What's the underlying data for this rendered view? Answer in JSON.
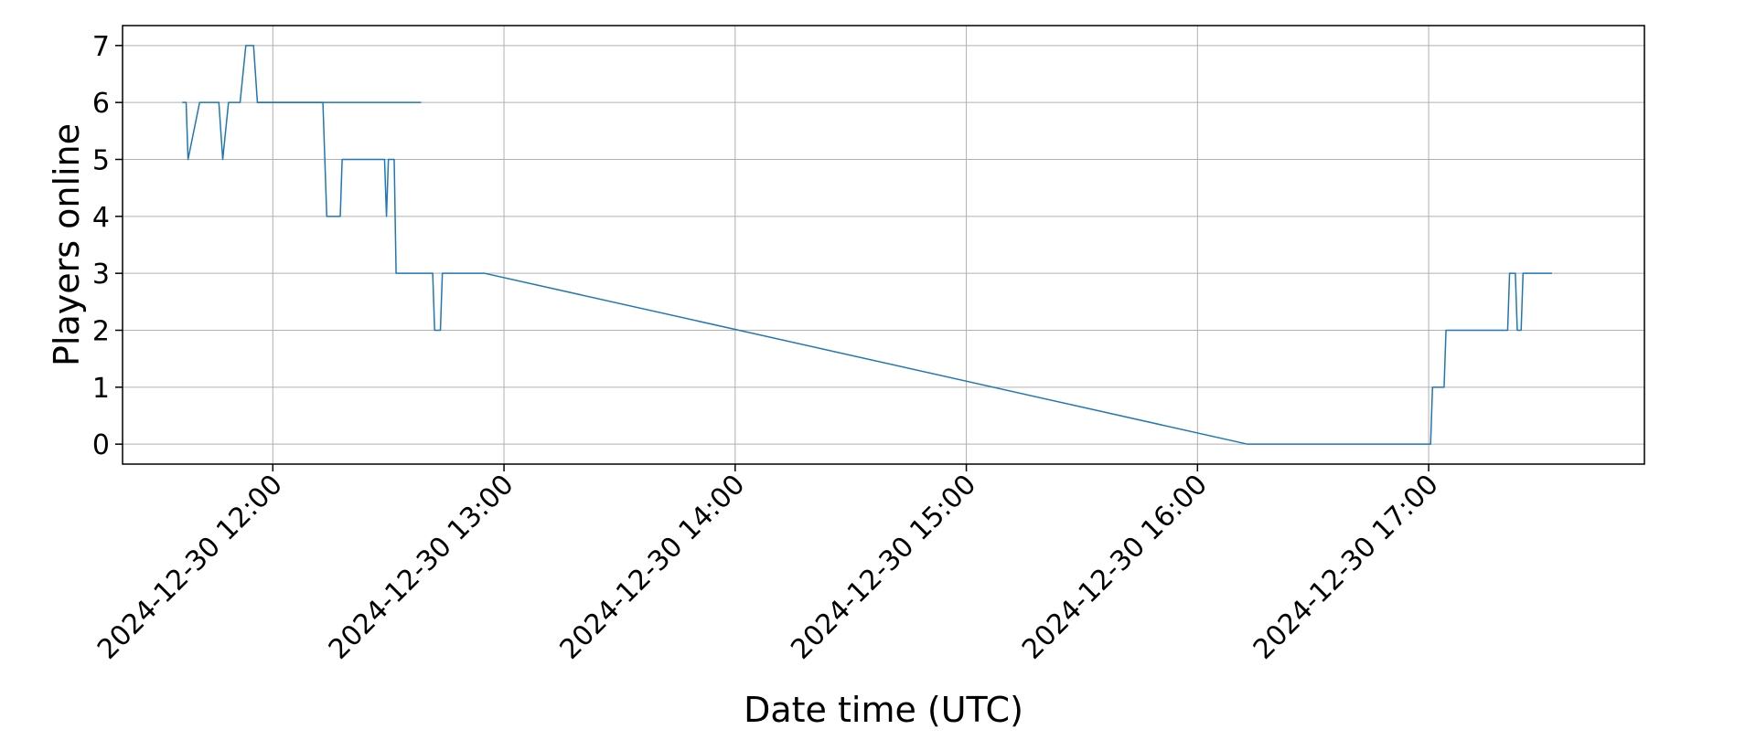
{
  "chart_data": {
    "type": "line",
    "title": "",
    "xlabel": "Date time (UTC)",
    "ylabel": "Players online",
    "xlim": [
      "2024-12-30 11:21",
      "2024-12-30 17:56"
    ],
    "ylim": [
      -0.35,
      7.35
    ],
    "grid": true,
    "x_ticks": [
      "2024-12-30 12:00",
      "2024-12-30 13:00",
      "2024-12-30 14:00",
      "2024-12-30 15:00",
      "2024-12-30 16:00",
      "2024-12-30 17:00"
    ],
    "y_ticks": [
      "0",
      "1",
      "2",
      "3",
      "4",
      "5",
      "6",
      "7"
    ],
    "series": [
      {
        "color": "#1f77b4",
        "x": [
          "2024-12-30 11:36:30",
          "2024-12-30 11:37:30",
          "2024-12-30 11:38:00",
          "2024-12-30 11:41:00",
          "2024-12-30 11:46:00",
          "2024-12-30 11:46:00",
          "2024-12-30 11:47:00",
          "2024-12-30 11:48:30",
          "2024-12-30 11:51:30",
          "2024-12-30 11:53:00",
          "2024-12-30 11:55:00",
          "2024-12-30 11:56:00",
          "2024-12-30 12:00:00",
          "2024-12-30 12:13:00",
          "2024-12-30 12:13:30",
          "2024-12-30 12:14:00",
          "2024-12-30 12:17:30",
          "2024-12-30 12:18:00",
          "2024-12-30 12:29:00",
          "2024-12-30 12:29:30",
          "2024-12-30 12:30:00",
          "2024-12-30 12:31:30",
          "2024-12-30 12:32:00",
          "2024-12-30 12:41:30",
          "2024-12-30 12:42:00",
          "2024-12-30 12:43:30",
          "2024-12-30 12:44:00",
          "2024-12-30 12:55:00",
          "2024-12-30 16:13:00",
          "2024-12-30 17:00:30",
          "2024-12-30 17:01:00",
          "2024-12-30 17:04:00",
          "2024-12-30 17:04:30",
          "2024-12-30 17:20:30",
          "2024-12-30 17:21:00",
          "2024-12-30 17:22:30",
          "2024-12-30 17:23:00",
          "2024-12-30 17:24:00",
          "2024-12-30 17:24:30",
          "2024-12-30 17:32:00"
        ],
        "values": [
          6,
          6,
          5,
          6,
          6,
          6,
          5,
          6,
          6,
          7,
          7,
          6,
          6,
          6,
          5,
          4,
          4,
          5,
          5,
          4,
          5,
          5,
          3,
          3,
          2,
          2,
          3,
          3,
          0,
          0,
          1,
          1,
          2,
          2,
          3,
          3,
          2,
          2,
          3,
          3
        ]
      },
      {
        "color": "#1f77b4",
        "x": [
          "2024-12-30 11:56:00",
          "2024-12-30 12:38:30"
        ],
        "values": [
          6,
          6
        ]
      }
    ]
  }
}
